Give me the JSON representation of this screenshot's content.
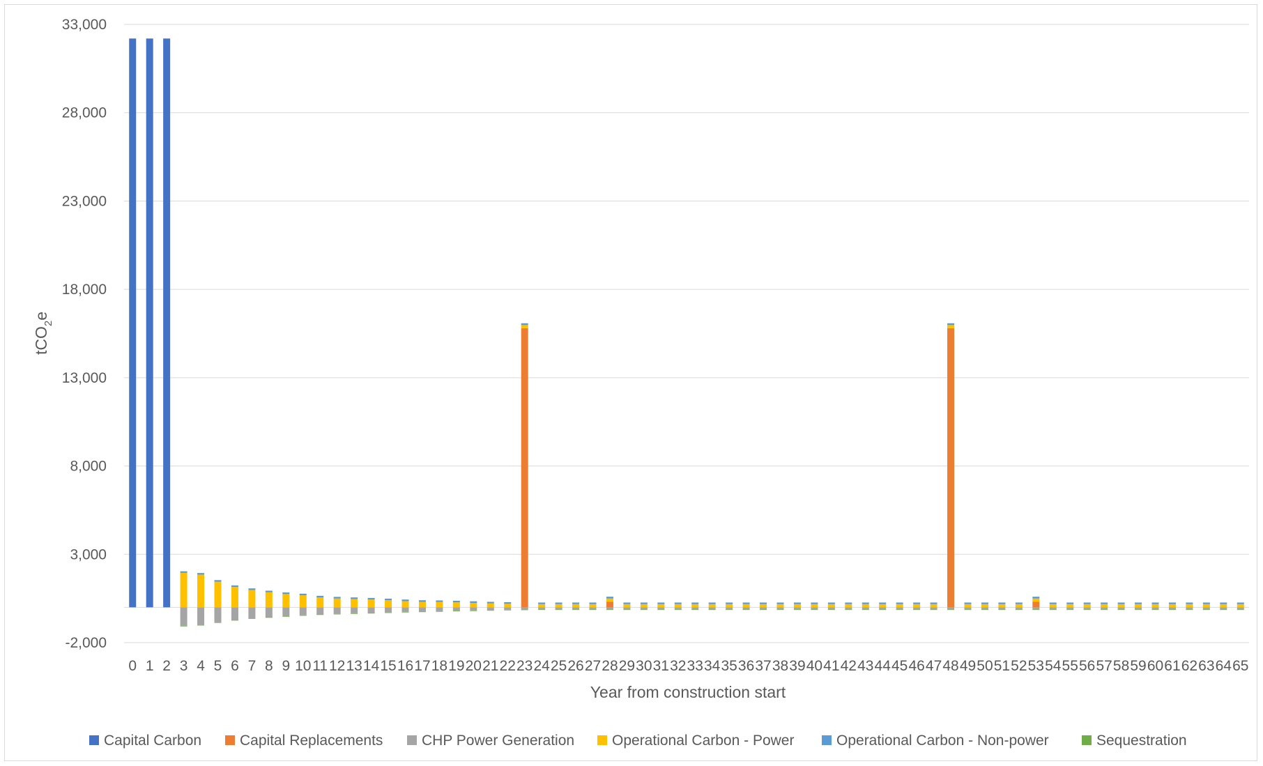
{
  "chart_data": {
    "type": "bar",
    "stacked": true,
    "grid": true,
    "legend_position": "bottom",
    "xlabel": "Year from construction start",
    "ylabel": "tCO2e",
    "ylabel_parts": {
      "base": "tCO",
      "subscript": "2",
      "suffix": "e"
    },
    "ylim": [
      -2000,
      33000
    ],
    "yticks": [
      -2000,
      3000,
      8000,
      13000,
      18000,
      23000,
      28000,
      33000
    ],
    "ytick_labels": [
      "-2,000",
      "3,000",
      "8,000",
      "13,000",
      "18,000",
      "23,000",
      "28,000",
      "33,000"
    ],
    "categories": [
      "0",
      "1",
      "2",
      "3",
      "4",
      "5",
      "6",
      "7",
      "8",
      "9",
      "10",
      "11",
      "12",
      "13",
      "14",
      "15",
      "16",
      "17",
      "18",
      "19",
      "20",
      "21",
      "22",
      "23",
      "24",
      "25",
      "26",
      "27",
      "28",
      "29",
      "30",
      "31",
      "32",
      "33",
      "34",
      "35",
      "36",
      "37",
      "38",
      "39",
      "40",
      "41",
      "42",
      "43",
      "44",
      "45",
      "46",
      "47",
      "48",
      "49",
      "50",
      "51",
      "52",
      "53",
      "54",
      "55",
      "56",
      "57",
      "58",
      "59",
      "60",
      "61",
      "62",
      "63",
      "64",
      "65"
    ],
    "series": [
      {
        "name": "Capital Carbon",
        "color": "#4472c4",
        "values": [
          32200,
          32200,
          32200,
          0,
          0,
          0,
          0,
          0,
          0,
          0,
          0,
          0,
          0,
          0,
          0,
          0,
          0,
          0,
          0,
          0,
          0,
          0,
          0,
          0,
          0,
          0,
          0,
          0,
          0,
          0,
          0,
          0,
          0,
          0,
          0,
          0,
          0,
          0,
          0,
          0,
          0,
          0,
          0,
          0,
          0,
          0,
          0,
          0,
          0,
          0,
          0,
          0,
          0,
          0,
          0,
          0,
          0,
          0,
          0,
          0,
          0,
          0,
          0,
          0,
          0,
          0
        ]
      },
      {
        "name": "Capital Replacements",
        "color": "#ed7d31",
        "values": [
          0,
          0,
          0,
          0,
          0,
          0,
          0,
          0,
          0,
          0,
          0,
          0,
          0,
          0,
          0,
          0,
          0,
          0,
          0,
          0,
          0,
          0,
          0,
          15800,
          0,
          0,
          0,
          0,
          320,
          0,
          0,
          0,
          0,
          0,
          0,
          0,
          0,
          0,
          0,
          0,
          0,
          0,
          0,
          0,
          0,
          0,
          0,
          0,
          15800,
          0,
          0,
          0,
          0,
          320,
          0,
          0,
          0,
          0,
          0,
          0,
          0,
          0,
          0,
          0,
          0,
          0
        ]
      },
      {
        "name": "CHP Power Generation",
        "color": "#a5a5a5",
        "values": [
          0,
          0,
          0,
          -1050,
          -1000,
          -850,
          -720,
          -620,
          -560,
          -500,
          -450,
          -400,
          -370,
          -340,
          -320,
          -290,
          -260,
          -240,
          -220,
          -200,
          -180,
          -160,
          -140,
          -130,
          -120,
          -120,
          -120,
          -120,
          -120,
          -120,
          -120,
          -120,
          -120,
          -120,
          -120,
          -120,
          -120,
          -120,
          -120,
          -120,
          -120,
          -120,
          -120,
          -120,
          -120,
          -120,
          -120,
          -120,
          -120,
          -120,
          -120,
          -120,
          -120,
          -120,
          -120,
          -120,
          -120,
          -120,
          -120,
          -120,
          -120,
          -120,
          -120,
          -120,
          -120,
          -120
        ]
      },
      {
        "name": "Operational Carbon - Power",
        "color": "#ffc000",
        "values": [
          0,
          0,
          0,
          1950,
          1850,
          1450,
          1150,
          980,
          850,
          750,
          680,
          560,
          500,
          470,
          440,
          400,
          350,
          310,
          300,
          280,
          250,
          220,
          200,
          180,
          180,
          180,
          180,
          180,
          180,
          180,
          180,
          180,
          180,
          180,
          180,
          180,
          180,
          180,
          180,
          180,
          180,
          180,
          180,
          180,
          180,
          180,
          180,
          180,
          180,
          180,
          180,
          180,
          180,
          180,
          180,
          180,
          180,
          180,
          180,
          180,
          180,
          180,
          180,
          180,
          180,
          180
        ]
      },
      {
        "name": "Operational Carbon - Non-power",
        "color": "#5b9bd5",
        "values": [
          0,
          0,
          0,
          90,
          90,
          90,
          90,
          90,
          90,
          90,
          90,
          90,
          90,
          90,
          90,
          90,
          90,
          90,
          90,
          90,
          90,
          90,
          90,
          100,
          90,
          90,
          90,
          90,
          100,
          90,
          90,
          90,
          90,
          90,
          90,
          90,
          90,
          90,
          90,
          90,
          90,
          90,
          90,
          90,
          90,
          90,
          90,
          90,
          100,
          90,
          90,
          90,
          90,
          100,
          90,
          90,
          90,
          90,
          90,
          90,
          90,
          90,
          90,
          90,
          90,
          90
        ]
      },
      {
        "name": "Sequestration",
        "color": "#70ad47",
        "values": [
          0,
          0,
          0,
          -20,
          -20,
          -20,
          -20,
          -20,
          -20,
          -20,
          -20,
          -20,
          -20,
          -20,
          -20,
          -20,
          -20,
          -20,
          -20,
          -20,
          -20,
          -20,
          -20,
          -20,
          -20,
          -20,
          -20,
          -20,
          -20,
          -20,
          -20,
          -20,
          -20,
          -20,
          -20,
          -20,
          -20,
          -20,
          -20,
          -20,
          -20,
          -20,
          -20,
          -20,
          -20,
          -20,
          -20,
          -20,
          -20,
          -20,
          -20,
          -20,
          -20,
          -20,
          -20,
          -20,
          -20,
          -20,
          -20,
          -20,
          -20,
          -20,
          -20,
          -20,
          -20,
          -20
        ]
      }
    ]
  }
}
